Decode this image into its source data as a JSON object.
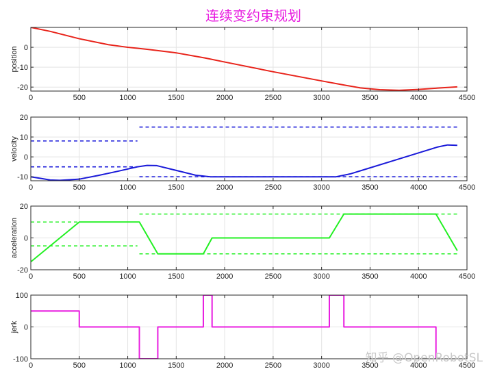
{
  "title": "连续变约束规划",
  "title_color": "#e81ee0",
  "watermark": "知乎 @OpenRobotSL",
  "chart_data": [
    {
      "type": "line",
      "ylabel": "position",
      "grid": true,
      "xlim": [
        0,
        4500
      ],
      "ylim": [
        -22,
        10
      ],
      "xticks": [
        0,
        500,
        1000,
        1500,
        2000,
        2500,
        3000,
        3500,
        4000,
        4500
      ],
      "yticks": [
        -20,
        -10,
        0
      ],
      "series": [
        {
          "color": "#e8231a",
          "style": "solid",
          "x": [
            0,
            200,
            500,
            800,
            1000,
            1100,
            1200,
            1500,
            1800,
            2000,
            2500,
            3000,
            3200,
            3400,
            3600,
            3800,
            4000,
            4200,
            4400
          ],
          "y": [
            10,
            8,
            4.3,
            1.3,
            0,
            -0.5,
            -1,
            -2.8,
            -5.4,
            -7.4,
            -12.3,
            -16.9,
            -18.7,
            -20.4,
            -21.3,
            -21.6,
            -21.2,
            -20.5,
            -19.9
          ]
        }
      ]
    },
    {
      "type": "line",
      "ylabel": "velocity",
      "grid": true,
      "xlim": [
        0,
        4500
      ],
      "ylim": [
        -12,
        20
      ],
      "xticks": [
        0,
        500,
        1000,
        1500,
        2000,
        2500,
        3000,
        3500,
        4000,
        4500
      ],
      "yticks": [
        -10,
        0,
        10,
        20
      ],
      "series": [
        {
          "color": "#1a1ad9",
          "style": "solid",
          "x": [
            0,
            100,
            200,
            300,
            500,
            700,
            900,
            1100,
            1200,
            1300,
            1500,
            1700,
            1850,
            2000,
            2500,
            3000,
            3150,
            3300,
            3500,
            3800,
            4000,
            4200,
            4300,
            4400
          ],
          "y": [
            -10,
            -10.8,
            -11.6,
            -11.8,
            -11.2,
            -9.3,
            -7.2,
            -5,
            -4.3,
            -4.4,
            -6.8,
            -9.2,
            -10,
            -10,
            -10,
            -10,
            -10,
            -8.5,
            -5.5,
            -1,
            2,
            5,
            6,
            5.8
          ]
        },
        {
          "color": "#1a1ad9",
          "style": "dashed",
          "x": [
            0,
            1100
          ],
          "y": [
            8,
            8
          ]
        },
        {
          "color": "#1a1ad9",
          "style": "dashed",
          "x": [
            0,
            1100
          ],
          "y": [
            -5,
            -5
          ]
        },
        {
          "color": "#1a1ad9",
          "style": "dashed",
          "x": [
            1120,
            4400
          ],
          "y": [
            15,
            15
          ]
        },
        {
          "color": "#1a1ad9",
          "style": "dashed",
          "x": [
            1120,
            4400
          ],
          "y": [
            -10,
            -10
          ]
        }
      ]
    },
    {
      "type": "line",
      "ylabel": "acceleration",
      "grid": true,
      "xlim": [
        0,
        4500
      ],
      "ylim": [
        -20,
        20
      ],
      "xticks": [
        0,
        500,
        1000,
        1500,
        2000,
        2500,
        3000,
        3500,
        4000,
        4500
      ],
      "yticks": [
        -20,
        0,
        20
      ],
      "series": [
        {
          "color": "#22f022",
          "style": "solid",
          "x": [
            0,
            500,
            1120,
            1310,
            1780,
            1870,
            3080,
            3230,
            4180,
            4400
          ],
          "y": [
            -15,
            10,
            10,
            -10,
            -10,
            0,
            0,
            15,
            15,
            -8
          ]
        },
        {
          "color": "#22f022",
          "style": "dashed",
          "x": [
            0,
            1100
          ],
          "y": [
            10,
            10
          ]
        },
        {
          "color": "#22f022",
          "style": "dashed",
          "x": [
            0,
            1100
          ],
          "y": [
            -5,
            -5
          ]
        },
        {
          "color": "#22f022",
          "style": "dashed",
          "x": [
            1120,
            4400
          ],
          "y": [
            15,
            15
          ]
        },
        {
          "color": "#22f022",
          "style": "dashed",
          "x": [
            1120,
            4400
          ],
          "y": [
            -10,
            -10
          ]
        }
      ]
    },
    {
      "type": "line",
      "ylabel": "jerk",
      "grid": true,
      "xlim": [
        0,
        4500
      ],
      "ylim": [
        -100,
        100
      ],
      "xticks": [
        0,
        500,
        1000,
        1500,
        2000,
        2500,
        3000,
        3500,
        4000,
        4500
      ],
      "yticks": [
        -100,
        0,
        100
      ],
      "series": [
        {
          "color": "#e81ee0",
          "style": "solid",
          "x": [
            0,
            500,
            500,
            1120,
            1120,
            1310,
            1310,
            1780,
            1780,
            1870,
            1870,
            3080,
            3080,
            3230,
            3230,
            4180,
            4180
          ],
          "y": [
            50,
            50,
            0,
            0,
            -100,
            -100,
            0,
            0,
            100,
            100,
            0,
            0,
            100,
            100,
            0,
            0,
            -100
          ]
        }
      ]
    }
  ]
}
